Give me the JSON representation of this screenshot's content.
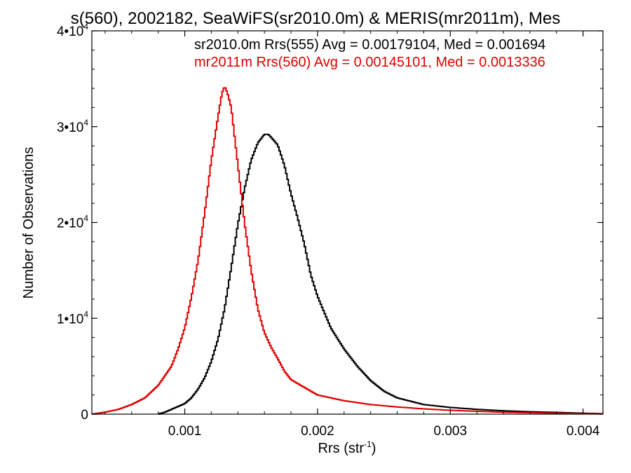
{
  "chart_data": {
    "type": "line",
    "title": "s(560), 2002182, SeaWiFS(sr2010.0m) & MERIS(mr2011m), Mes",
    "xlabel": "Rrs (str",
    "xlabel_sup": "-1",
    "xlabel_suffix": ")",
    "ylabel": "Number of Observations",
    "xlim": [
      0.0003,
      0.00415
    ],
    "ylim": [
      0,
      40000
    ],
    "xticks": [
      {
        "value": 0.001,
        "label": "0.001"
      },
      {
        "value": 0.002,
        "label": "0.002"
      },
      {
        "value": 0.003,
        "label": "0.003"
      },
      {
        "value": 0.004,
        "label": "0.004"
      }
    ],
    "yticks": [
      {
        "value": 0,
        "label": "0",
        "sup": ""
      },
      {
        "value": 10000,
        "label": "1•10",
        "sup": "4"
      },
      {
        "value": 20000,
        "label": "2•10",
        "sup": "4"
      },
      {
        "value": 30000,
        "label": "3•10",
        "sup": "4"
      },
      {
        "value": 40000,
        "label": "4•10",
        "sup": "4"
      }
    ],
    "annotations": [
      {
        "text": "sr2010.0m Rrs(555) Avg = 0.00179104, Med = 0.001694",
        "color": "#000000"
      },
      {
        "text": "mr2011m Rrs(560) Avg = 0.00145101, Med = 0.0013336",
        "color": "#e00000"
      }
    ],
    "series": [
      {
        "color": "#000000",
        "x": [
          0.0008,
          0.00085,
          0.0009,
          0.00095,
          0.001,
          0.00105,
          0.0011,
          0.00115,
          0.0012,
          0.00125,
          0.0013,
          0.00135,
          0.0014,
          0.00145,
          0.0015,
          0.00155,
          0.0016,
          0.00163,
          0.00165,
          0.0017,
          0.00175,
          0.0018,
          0.00185,
          0.0019,
          0.00195,
          0.002,
          0.0021,
          0.0022,
          0.0023,
          0.0024,
          0.0025,
          0.0026,
          0.0028,
          0.003,
          0.0032,
          0.0034,
          0.0036,
          0.0038,
          0.004,
          0.00415
        ],
        "y": [
          0,
          200,
          500,
          800,
          1100,
          1700,
          2600,
          3800,
          5500,
          7800,
          11000,
          15300,
          19800,
          23500,
          26500,
          28300,
          29200,
          29200,
          28900,
          28100,
          26000,
          23000,
          20500,
          17800,
          14500,
          12300,
          9000,
          6800,
          5000,
          3500,
          2400,
          1700,
          1000,
          700,
          500,
          350,
          250,
          180,
          100,
          50
        ]
      },
      {
        "color": "#e00000",
        "x": [
          0.0003,
          0.0004,
          0.0005,
          0.0006,
          0.0007,
          0.0008,
          0.0009,
          0.00095,
          0.001,
          0.00105,
          0.0011,
          0.00115,
          0.0012,
          0.00125,
          0.00128,
          0.0013,
          0.00132,
          0.00135,
          0.0014,
          0.00145,
          0.0015,
          0.00155,
          0.0016,
          0.00165,
          0.0017,
          0.00175,
          0.0018,
          0.0019,
          0.002,
          0.0021,
          0.0022,
          0.0024,
          0.0026,
          0.0028,
          0.003,
          0.0032,
          0.0034,
          0.0036,
          0.0038,
          0.004,
          0.00415
        ],
        "y": [
          0,
          200,
          500,
          1000,
          1700,
          3000,
          5000,
          6800,
          9000,
          12200,
          16000,
          21000,
          26500,
          31000,
          33500,
          34200,
          33600,
          32000,
          26000,
          20000,
          15000,
          11000,
          8500,
          7000,
          5800,
          4500,
          3600,
          2800,
          2000,
          1700,
          1400,
          1000,
          750,
          550,
          400,
          300,
          200,
          150,
          100,
          50,
          30
        ]
      }
    ]
  }
}
